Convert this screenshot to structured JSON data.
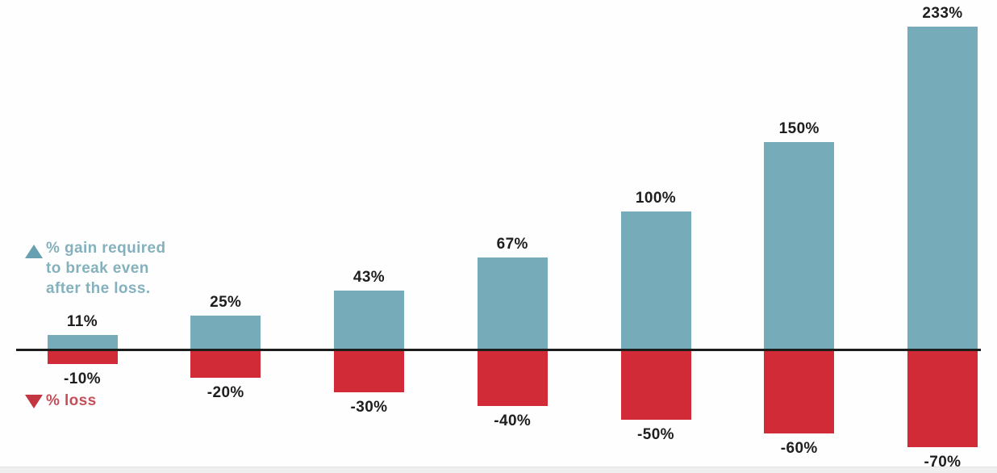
{
  "chart_data": {
    "type": "bar",
    "title": "",
    "xlabel": "",
    "ylabel": "",
    "categories": [
      "-10%",
      "-20%",
      "-30%",
      "-40%",
      "-50%",
      "-60%",
      "-70%"
    ],
    "series": [
      {
        "name": "% gain required to break even after the loss.",
        "values": [
          11,
          25,
          43,
          67,
          100,
          150,
          233
        ],
        "labels": [
          "11%",
          "25%",
          "43%",
          "67%",
          "100%",
          "150%",
          "233%"
        ],
        "color": "#76acba"
      },
      {
        "name": "% loss",
        "values": [
          -10,
          -20,
          -30,
          -40,
          -50,
          -60,
          -70
        ],
        "labels": [
          "-10%",
          "-20%",
          "-30%",
          "-40%",
          "-50%",
          "-60%",
          "-70%"
        ],
        "color": "#d22b38"
      }
    ],
    "ylim": [
      -70,
      233
    ],
    "baseline": 0,
    "grid": false,
    "legend_position": "left-middle"
  },
  "legend": {
    "gain": {
      "icon": "up-triangle-icon",
      "icon_color": "#67a0b0",
      "text": "% gain required\nto break even\nafter the loss.",
      "text_color": "#85b1bd"
    },
    "loss": {
      "icon": "down-triangle-icon",
      "icon_color": "#c23541",
      "text": "% loss",
      "text_color": "#c54e58"
    }
  },
  "colors": {
    "gain_bar": "#76acba",
    "loss_bar": "#d22b38",
    "axis_line": "#1d1d1b",
    "value_label_text": "#1e1e1e",
    "background": "#fefefe"
  }
}
